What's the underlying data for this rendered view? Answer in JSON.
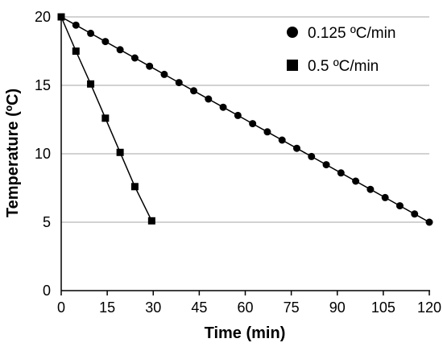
{
  "chart_data": {
    "type": "line",
    "title": "",
    "xlabel": "Time (min)",
    "ylabel": "Temperature (ºC)",
    "xlim": [
      0,
      120
    ],
    "ylim": [
      0,
      20
    ],
    "xticks": [
      "0",
      "15",
      "30",
      "45",
      "60",
      "75",
      "90",
      "105",
      "120"
    ],
    "yticks": [
      "0",
      "5",
      "10",
      "15",
      "20"
    ],
    "grid": "horizontal",
    "legend_position": "top-right",
    "series": [
      {
        "name": "0.125 ºC/min",
        "marker": "circle",
        "color": "#000000",
        "x": [
          0,
          4.8,
          9.6,
          14.4,
          19.2,
          24,
          28.8,
          33.6,
          38.4,
          43.2,
          48,
          52.8,
          57.6,
          62.4,
          67.2,
          72,
          76.8,
          81.6,
          86.4,
          91.2,
          96,
          100.8,
          105.6,
          110.4,
          115.2,
          120
        ],
        "y": [
          20,
          19.4,
          18.8,
          18.2,
          17.6,
          17,
          16.4,
          15.8,
          15.2,
          14.6,
          14,
          13.4,
          12.8,
          12.2,
          11.6,
          11,
          10.4,
          9.8,
          9.2,
          8.6,
          8,
          7.4,
          6.8,
          6.2,
          5.6,
          5
        ]
      },
      {
        "name": "0.5 ºC/min",
        "marker": "square",
        "color": "#000000",
        "x": [
          0,
          4.8,
          9.6,
          14.4,
          19.2,
          24,
          29.5
        ],
        "y": [
          20,
          17.5,
          15.1,
          12.6,
          10.1,
          7.6,
          5.1
        ]
      }
    ]
  }
}
